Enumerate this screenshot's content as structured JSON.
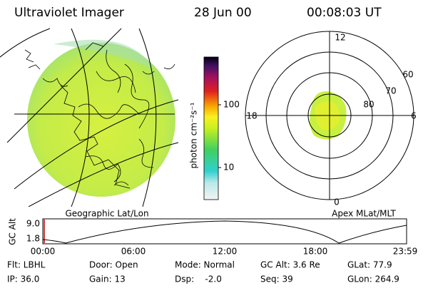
{
  "header": {
    "instrument": "Ultraviolet Imager",
    "date": "28 Jun 00",
    "time": "00:08:03 UT"
  },
  "colorbar": {
    "label": "photon cm⁻²s⁻¹",
    "ticks": [
      "100",
      "10"
    ]
  },
  "geo_panel": {
    "label": "Geographic Lat/Lon"
  },
  "polar_panel": {
    "label": "Apex MLat/MLT",
    "mlt_labels": [
      "12",
      "18",
      "6",
      "0"
    ],
    "lat_labels": [
      "60",
      "70",
      "80"
    ]
  },
  "altitude_plot": {
    "ylabel": "GC Alt",
    "yticks": [
      "9.0",
      "1.8"
    ],
    "xticks": [
      "00:00",
      "06:00",
      "12:00",
      "18:00",
      "23:59"
    ]
  },
  "status": {
    "rows": [
      [
        "Flt: LBHL",
        "Door: Open",
        "Mode: Normal",
        "GC Alt: 3.6 Re",
        "GLat: 77.9"
      ],
      [
        "IP: 36.0",
        "Gain: 13",
        "Dsp:    -2.0",
        "Seq: 39",
        "GLon: 264.9"
      ]
    ]
  }
}
